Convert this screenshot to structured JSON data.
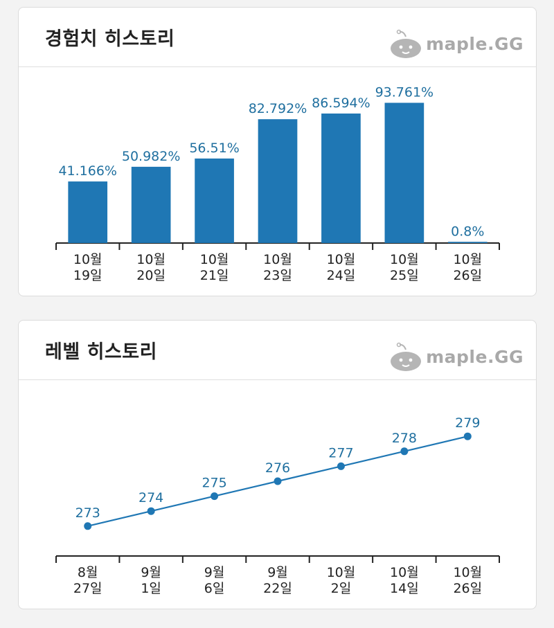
{
  "brand": {
    "text": "maple.GG",
    "icon": "slime-mascot-icon"
  },
  "colors": {
    "bar": "#1f77b4",
    "label": "#1f6f9f",
    "axis": "#222222",
    "tick_text": "#222222"
  },
  "exp_card": {
    "title": "경험치 히스토리"
  },
  "level_card": {
    "title": "레벨 히스토리"
  },
  "chart_data": [
    {
      "type": "bar",
      "title": "경험치 히스토리",
      "categories": [
        [
          "10월",
          "19일"
        ],
        [
          "10월",
          "20일"
        ],
        [
          "10월",
          "21일"
        ],
        [
          "10월",
          "23일"
        ],
        [
          "10월",
          "24일"
        ],
        [
          "10월",
          "25일"
        ],
        [
          "10월",
          "26일"
        ]
      ],
      "values": [
        41.166,
        50.982,
        56.51,
        82.792,
        86.594,
        93.761,
        0.8
      ],
      "labels": [
        "41.166%",
        "50.982%",
        "56.51%",
        "82.792%",
        "86.594%",
        "93.761%",
        "0.8%"
      ],
      "ylim": [
        0,
        100
      ]
    },
    {
      "type": "line",
      "title": "레벨 히스토리",
      "categories": [
        [
          "8월",
          "27일"
        ],
        [
          "9월",
          "1일"
        ],
        [
          "9월",
          "6일"
        ],
        [
          "9월",
          "22일"
        ],
        [
          "10월",
          "2일"
        ],
        [
          "10월",
          "14일"
        ],
        [
          "10월",
          "26일"
        ]
      ],
      "values": [
        273,
        274,
        275,
        276,
        277,
        278,
        279
      ],
      "labels": [
        "273",
        "274",
        "275",
        "276",
        "277",
        "278",
        "279"
      ],
      "ylim": [
        271,
        281
      ]
    }
  ]
}
